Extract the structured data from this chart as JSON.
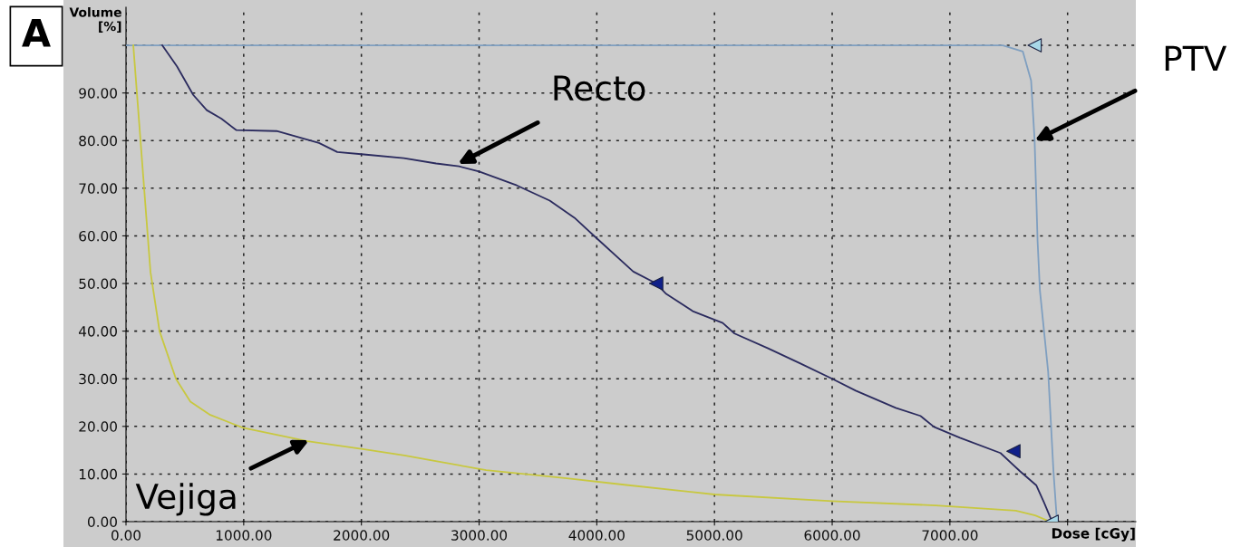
{
  "chart_data": {
    "type": "line",
    "xlabel": "Dose [cGy]",
    "ylabel": "Volume\n[%]",
    "xlim": [
      0,
      8580
    ],
    "ylim": [
      0,
      108
    ],
    "xticks": [
      {
        "value": 0,
        "label": "0.00"
      },
      {
        "value": 1000,
        "label": "1000.00"
      },
      {
        "value": 2000,
        "label": "2000.00"
      },
      {
        "value": 3000,
        "label": "3000.00"
      },
      {
        "value": 4000,
        "label": "4000.00"
      },
      {
        "value": 5000,
        "label": "5000.00"
      },
      {
        "value": 6000,
        "label": "6000.00"
      },
      {
        "value": 7000,
        "label": "7000.00"
      },
      {
        "value": 8000,
        "label": null
      }
    ],
    "yticks": [
      {
        "value": 0,
        "label": "0.00"
      },
      {
        "value": 10,
        "label": "10.00"
      },
      {
        "value": 20,
        "label": "20.00"
      },
      {
        "value": 30,
        "label": "30.00"
      },
      {
        "value": 40,
        "label": "40.00"
      },
      {
        "value": 50,
        "label": "50.00"
      },
      {
        "value": 60,
        "label": "60.00"
      },
      {
        "value": 70,
        "label": "70.00"
      },
      {
        "value": 80,
        "label": "80.00"
      },
      {
        "value": 90,
        "label": "90.00"
      },
      {
        "value": 100,
        "label": null
      }
    ],
    "grid": true,
    "line_style": "solid",
    "legend": false,
    "series": [
      {
        "color": "#7f9fc0",
        "x": [
          0,
          7450,
          7620,
          7690,
          7720,
          7745,
          7765,
          7835,
          7880,
          7910
        ],
        "values": [
          100,
          100,
          98.7,
          92.6,
          80,
          59,
          48.5,
          31.5,
          10.6,
          0
        ]
      },
      {
        "color": "#2b2b5e",
        "x": [
          308,
          433,
          571,
          686,
          810,
          938,
          1280,
          1640,
          1795,
          2020,
          2360,
          2635,
          2830,
          3000,
          3320,
          3600,
          3810,
          3990,
          4310,
          4505,
          4590,
          4815,
          5070,
          5170,
          5455,
          5730,
          6000,
          6200,
          6540,
          6750,
          6865,
          7085,
          7430,
          7595,
          7735,
          7800,
          7865
        ],
        "values": [
          100,
          95.6,
          89.6,
          86.4,
          84.6,
          82.2,
          82,
          79.5,
          77.6,
          77.1,
          76.3,
          75.2,
          74.6,
          73.5,
          70.6,
          67.4,
          63.8,
          59.7,
          52.5,
          50,
          47.8,
          44.2,
          41.7,
          39.5,
          36.4,
          33.2,
          30,
          27.5,
          23.9,
          22.2,
          19.9,
          17.6,
          14.4,
          10.6,
          7.6,
          4,
          0.2
        ]
      },
      {
        "color": "#c8c840",
        "x": [
          62,
          208,
          285,
          424,
          547,
          716,
          994,
          1540,
          2025,
          2365,
          3060,
          3745,
          4250,
          5000,
          6000,
          6880,
          7560,
          7725,
          7850
        ],
        "values": [
          100,
          52.4,
          40,
          30,
          25.2,
          22.4,
          19.7,
          16.9,
          15.2,
          13.9,
          10.8,
          9.1,
          7.7,
          5.7,
          4.3,
          3.4,
          2.3,
          1.3,
          0
        ]
      },
      {
        "type": "scatter",
        "marker": "triangle",
        "color": "#10208a",
        "x": [
          4505,
          7540
        ],
        "values": [
          50,
          14.8
        ]
      },
      {
        "type": "scatter",
        "marker": "triangle",
        "color": "#a8d8e8",
        "x": [
          7720,
          7865
        ],
        "values": [
          100,
          0
        ]
      }
    ],
    "annotations": [
      "A",
      {
        "text": "Recto",
        "x": 2820,
        "y": 75.1
      },
      {
        "text": "PTV",
        "x": 7720,
        "y": 80
      },
      {
        "text": "Vejiga",
        "x": 1555,
        "y": 17.1
      }
    ]
  }
}
